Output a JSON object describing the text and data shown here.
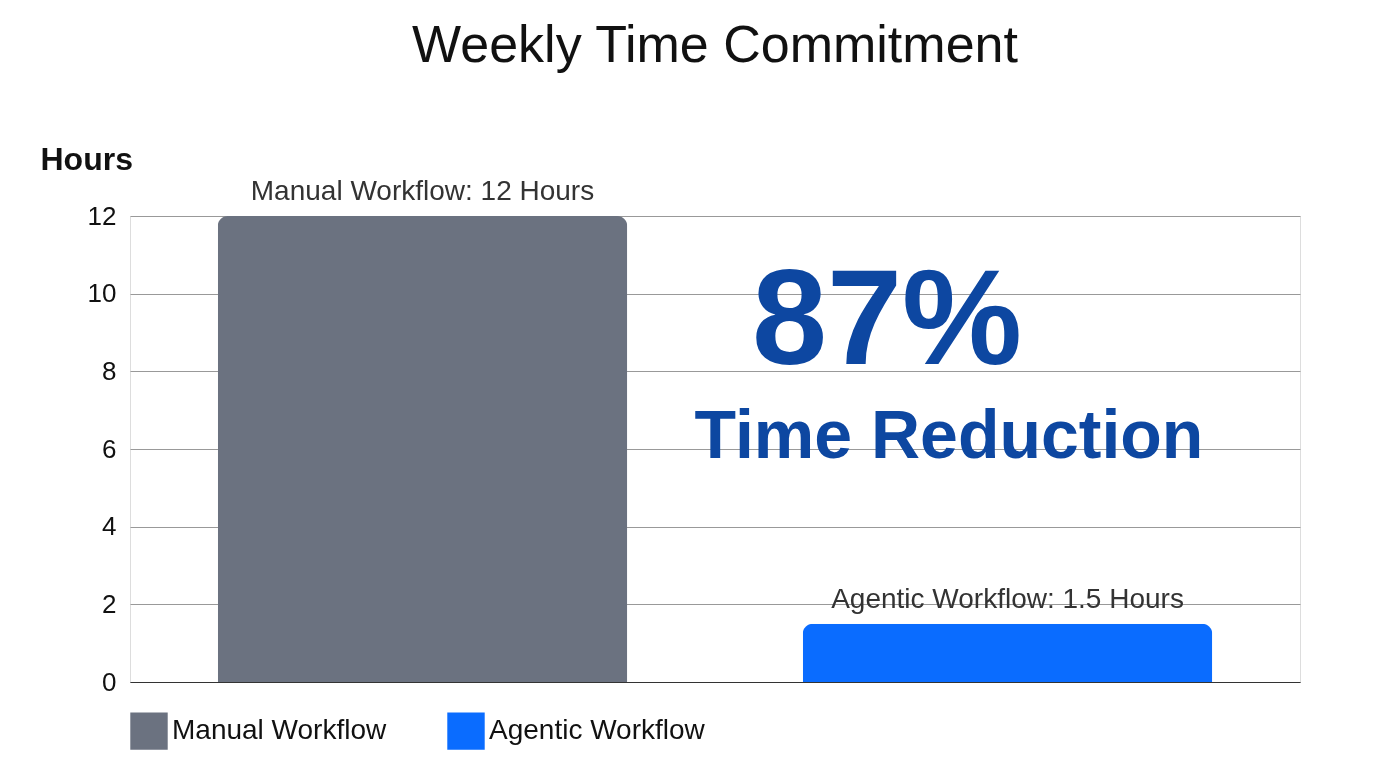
{
  "chart_data": {
    "type": "bar",
    "title": "Weekly Time Commitment",
    "ylabel": "Hours",
    "categories": [
      null,
      null
    ],
    "series": [
      {
        "name": "Manual Workflow",
        "color": "#6b7280",
        "values": [
          12,
          null
        ],
        "value_labels": [
          "Manual Workflow: 12 Hours",
          null
        ]
      },
      {
        "name": "Agentic Workflow",
        "color": "#0a6cff",
        "values": [
          null,
          1.5
        ],
        "value_labels": [
          null,
          "Agentic Workflow: 1.5 Hours"
        ]
      }
    ],
    "ylim": [
      0,
      12
    ],
    "yticks": [
      0,
      2,
      4,
      6,
      8,
      10,
      12
    ],
    "grid": "y",
    "legend": "bottom",
    "tick_labels": "y",
    "annotations": [
      "87%",
      "Time Reduction"
    ]
  }
}
